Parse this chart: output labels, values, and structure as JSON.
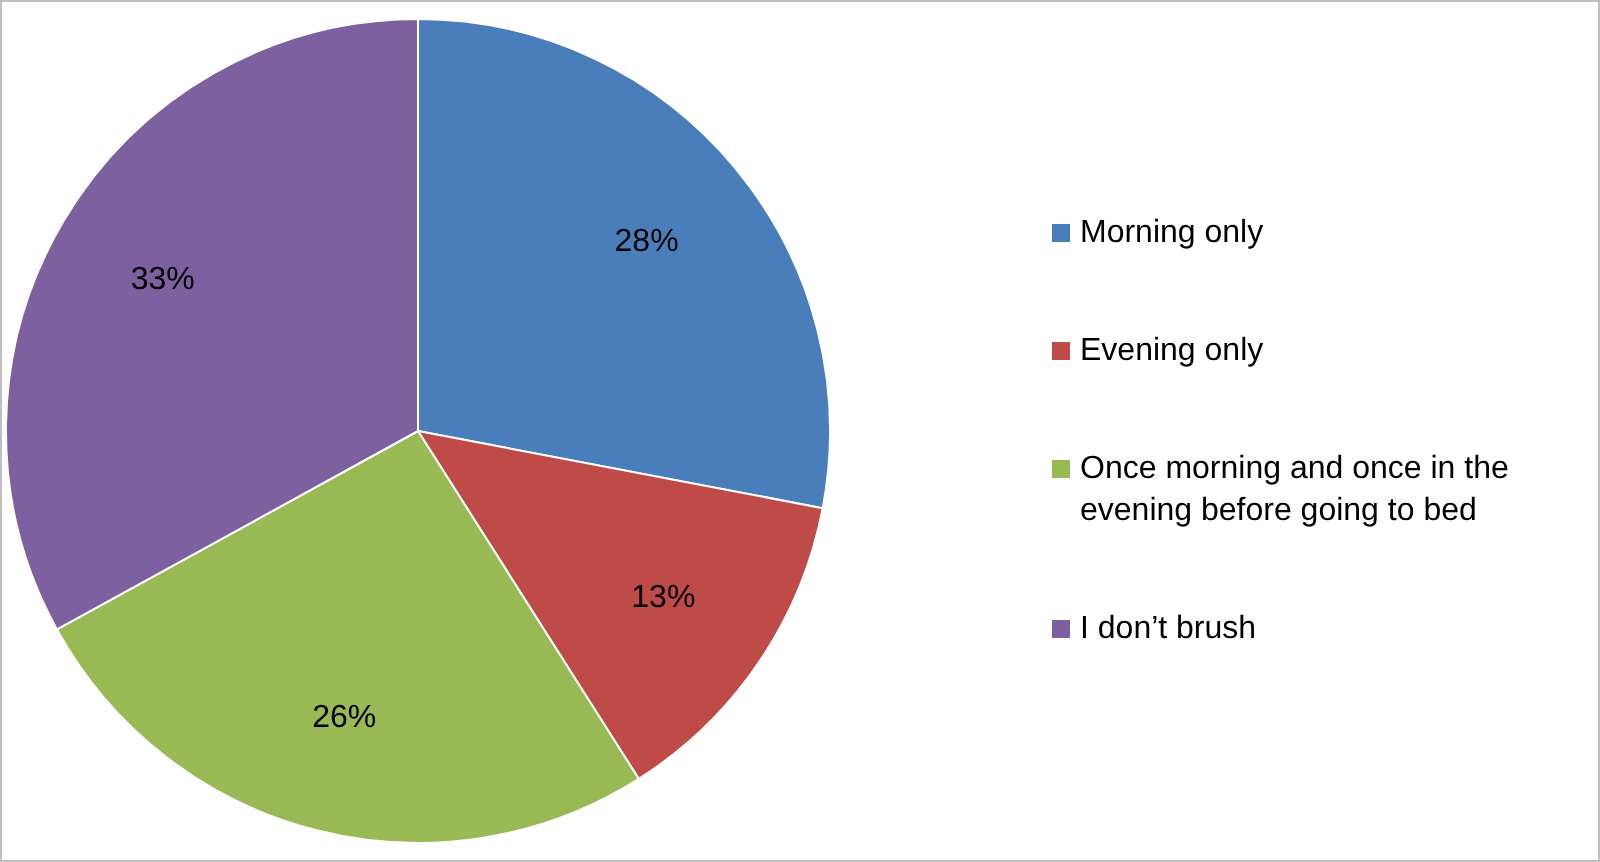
{
  "chart_data": {
    "type": "pie",
    "categories": [
      "Morning only",
      "Evening only",
      "Once morning and once in the evening before going to bed",
      "I don’t brush"
    ],
    "values": [
      28,
      13,
      26,
      33
    ],
    "colors": [
      "#4a7ebb",
      "#be4b48",
      "#98b954",
      "#7d60a0"
    ],
    "value_labels": [
      "28%",
      "13%",
      "26%",
      "33%"
    ],
    "legend": "right"
  }
}
